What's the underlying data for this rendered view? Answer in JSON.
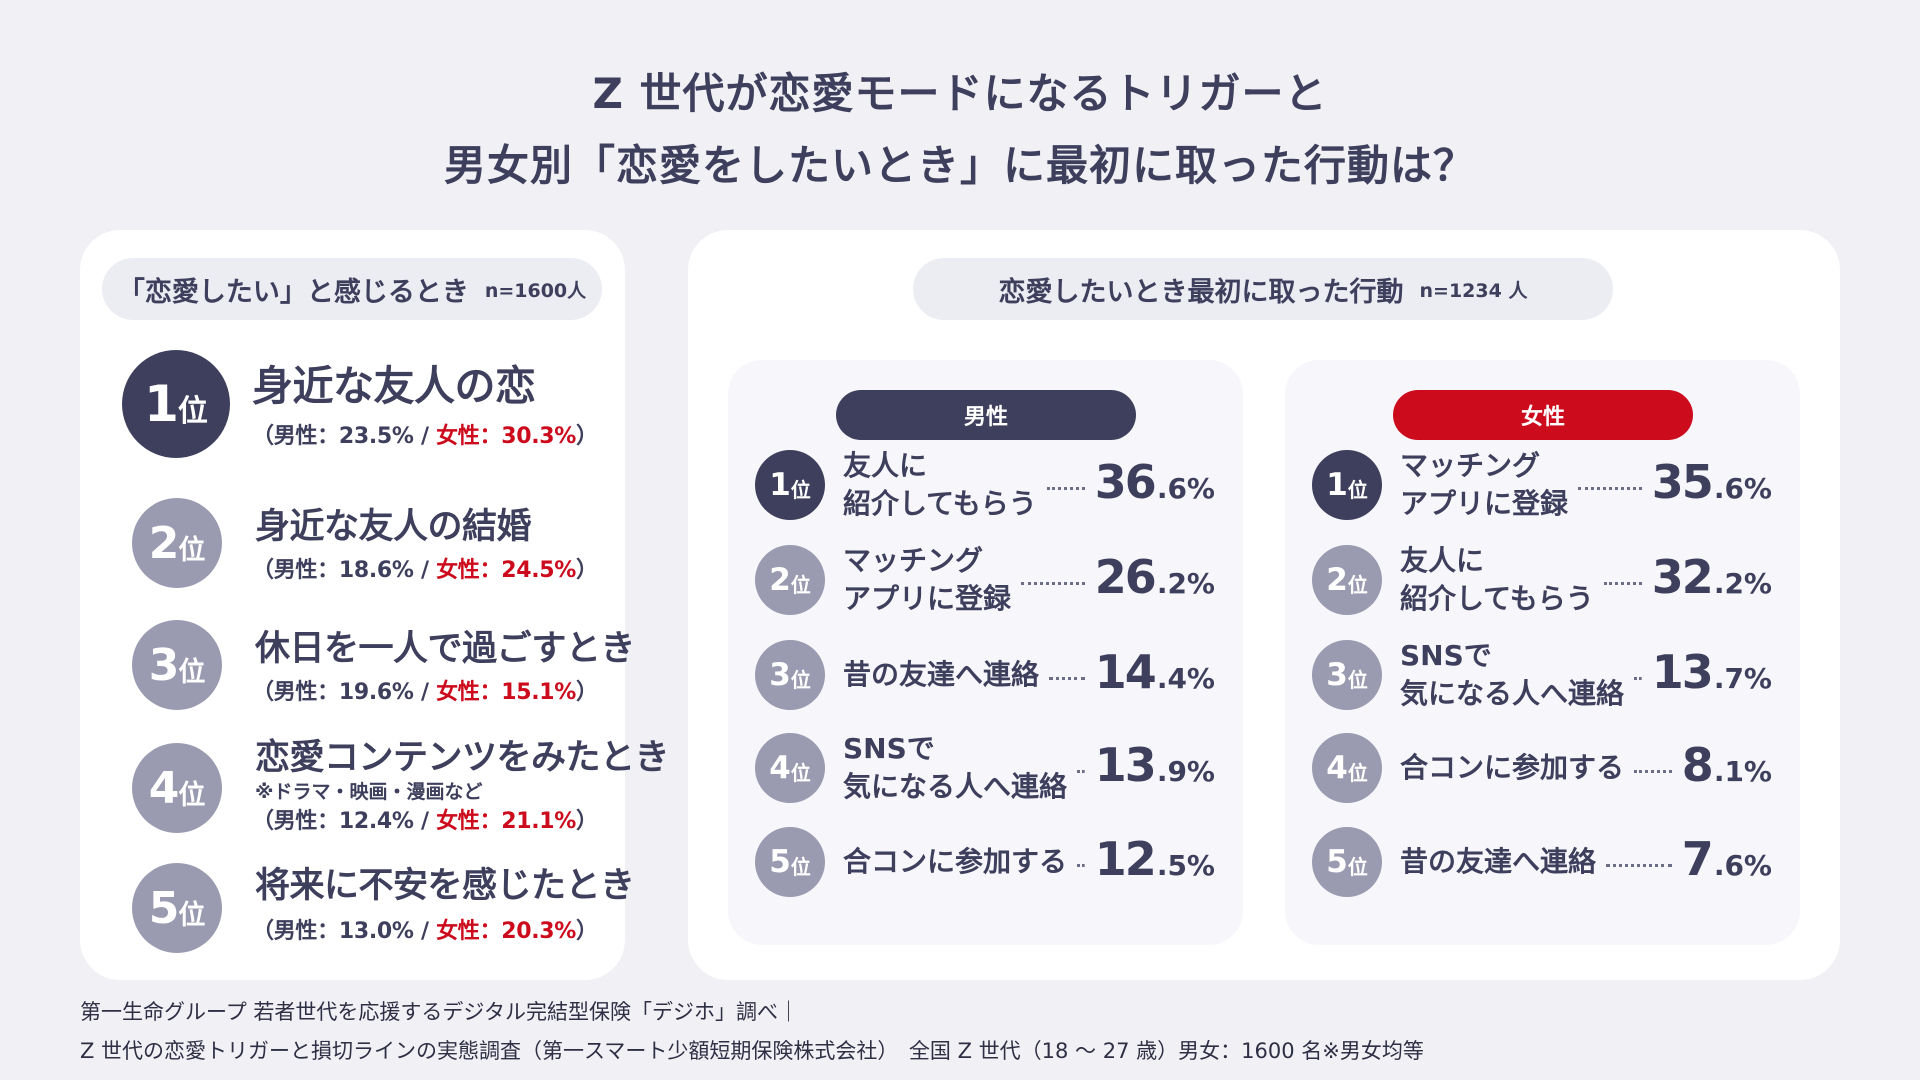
{
  "title": {
    "line1": "Z 世代が恋愛モードになるトリガーと",
    "line2": "男女別「恋愛をしたいとき」に最初に取った行動は？"
  },
  "left": {
    "header": "「恋愛したい」と感じるとき",
    "n": "n=1600人",
    "rank_suffix": "位",
    "male_label": "（男性：",
    "female_label": "女性：",
    "items": [
      {
        "rank": "1",
        "title": "身近な友人の恋",
        "male": "23.5%",
        "female": "30.3%",
        "note": ""
      },
      {
        "rank": "2",
        "title": "身近な友人の結婚",
        "male": "18.6%",
        "female": "24.5%",
        "note": ""
      },
      {
        "rank": "3",
        "title": "休日を一人で過ごすとき",
        "male": "19.6%",
        "female": "15.1%",
        "note": ""
      },
      {
        "rank": "4",
        "title": "恋愛コンテンツをみたとき",
        "male": "12.4%",
        "female": "21.1%",
        "note": "※ドラマ・映画・漫画など"
      },
      {
        "rank": "5",
        "title": "将来に不安を感じたとき",
        "male": "13.0%",
        "female": "20.3%",
        "note": ""
      }
    ]
  },
  "right": {
    "header": "恋愛したいとき最初に取った行動",
    "n": "n=1234 人",
    "male": {
      "label": "男性",
      "items": [
        {
          "rank": "1",
          "line1": "友人に",
          "line2": "紹介してもらう",
          "value_int": "36",
          "value_dec": ".6%"
        },
        {
          "rank": "2",
          "line1": "マッチング",
          "line2": "アプリに登録",
          "value_int": "26",
          "value_dec": ".2%"
        },
        {
          "rank": "3",
          "line1": "昔の友達へ連絡",
          "line2": "",
          "value_int": "14",
          "value_dec": ".4%"
        },
        {
          "rank": "4",
          "line1": "SNSで",
          "line2": "気になる人へ連絡",
          "value_int": "13",
          "value_dec": ".9%"
        },
        {
          "rank": "5",
          "line1": "合コンに参加する",
          "line2": "",
          "value_int": "12",
          "value_dec": ".5%"
        }
      ]
    },
    "female": {
      "label": "女性",
      "items": [
        {
          "rank": "1",
          "line1": "マッチング",
          "line2": "アプリに登録",
          "value_int": "35",
          "value_dec": ".6%"
        },
        {
          "rank": "2",
          "line1": "友人に",
          "line2": "紹介してもらう",
          "value_int": "32",
          "value_dec": ".2%"
        },
        {
          "rank": "3",
          "line1": "SNSで",
          "line2": "気になる人へ連絡",
          "value_int": "13",
          "value_dec": ".7%"
        },
        {
          "rank": "4",
          "line1": "合コンに参加する",
          "line2": "",
          "value_int": "8",
          "value_dec": ".1%"
        },
        {
          "rank": "5",
          "line1": "昔の友達へ連絡",
          "line2": "",
          "value_int": "7",
          "value_dec": ".6%"
        }
      ]
    }
  },
  "footer": {
    "line1": "第一生命グループ 若者世代を応援するデジタル完結型保険「デジホ」調べ｜",
    "line2": "Z 世代の恋愛トリガーと損切ラインの実態調査（第一スマート少額短期保険株式会社）　全国 Z 世代（18 〜 27 歳）男女：1600 名※男女均等"
  },
  "colors": {
    "navy": "#3e3f5c",
    "gray_circle": "#9a9ab0",
    "female_red": "#cc0b1c",
    "background": "#f0f0f5"
  }
}
